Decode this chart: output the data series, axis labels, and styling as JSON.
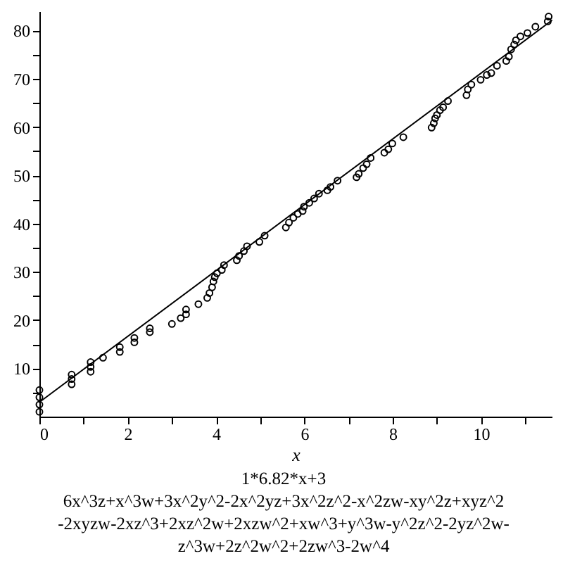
{
  "chart_data": {
    "type": "scatter",
    "xlabel": "x",
    "annotations": [
      "1*6.82*x+3",
      "6x^3z+x^3w+3x^2y^2-2x^2yz+3x^2z^2-x^2zw-xy^2z+xyz^2",
      "-2xyzw-2xz^3+2xz^2w+2xzw^2+xw^3+y^3w-y^2z^2-2yz^2w-",
      "z^3w+2z^2w^2+2zw^3-2w^4"
    ],
    "xlim": [
      0,
      11.6
    ],
    "ylim": [
      0,
      84
    ],
    "xticks": [
      0,
      {
        "value": 1,
        "label": null
      },
      2,
      {
        "value": 3,
        "label": null
      },
      4,
      {
        "value": 5,
        "label": null
      },
      6,
      {
        "value": 7,
        "label": null
      },
      8,
      {
        "value": 9,
        "label": null
      },
      10,
      {
        "value": 11,
        "label": null
      }
    ],
    "yticks": [
      {
        "value": 5,
        "label": null
      },
      10,
      {
        "value": 15,
        "label": null
      },
      20,
      {
        "value": 25,
        "label": null
      },
      30,
      {
        "value": 35,
        "label": null
      },
      40,
      {
        "value": 45,
        "label": null
      },
      50,
      {
        "value": 55,
        "label": null
      },
      60,
      {
        "value": 65,
        "label": null
      },
      70,
      {
        "value": 75,
        "label": null
      },
      80
    ],
    "grid": false,
    "series": [
      {
        "color": "#000000",
        "marker": "circle",
        "x": [
          0,
          0,
          0,
          0,
          0.73,
          0.73,
          0.73,
          1.16,
          1.16,
          1.16,
          1.44,
          1.82,
          1.82,
          2.15,
          2.15,
          2.5,
          2.5,
          3.0,
          3.2,
          3.32,
          3.32,
          3.6,
          3.8,
          3.85,
          3.91,
          3.94,
          3.97,
          4.02,
          4.13,
          4.18,
          4.47,
          4.52,
          4.63,
          4.7,
          4.98,
          5.1,
          5.58,
          5.65,
          5.75,
          5.85,
          5.96,
          5.99,
          6.11,
          6.22,
          6.33,
          6.52,
          6.59,
          6.75,
          7.18,
          7.23,
          7.33,
          7.41,
          7.5,
          7.81,
          7.9,
          7.99,
          8.24,
          8.88,
          8.93,
          8.96,
          9.0,
          9.07,
          9.14,
          9.25,
          9.67,
          9.7,
          9.78,
          9.99,
          10.13,
          10.23,
          10.36,
          10.57,
          10.63,
          10.68,
          10.75,
          10.79,
          10.89,
          11.05,
          11.23,
          11.51,
          11.53
        ],
        "values": [
          1,
          2.5,
          4,
          5.5,
          6.7,
          7.8,
          8.7,
          9.3,
          10.3,
          11.3,
          12.2,
          13.4,
          14.4,
          15.4,
          16.3,
          17.5,
          18.3,
          19.2,
          20.4,
          21.2,
          22.2,
          23.3,
          24.6,
          25.6,
          26.8,
          28.0,
          28.9,
          29.7,
          30.4,
          31.4,
          32.4,
          33.3,
          34.3,
          35.3,
          36.2,
          37.5,
          39.2,
          40.2,
          41.2,
          42.0,
          42.6,
          43.5,
          44.3,
          45.2,
          46.2,
          46.9,
          47.6,
          48.9,
          49.6,
          50.3,
          51.5,
          52.3,
          53.6,
          54.7,
          55.4,
          56.6,
          57.9,
          59.9,
          60.8,
          61.8,
          62.5,
          63.5,
          64.1,
          65.4,
          66.6,
          67.8,
          68.8,
          69.8,
          70.8,
          71.2,
          72.7,
          73.7,
          74.6,
          76.1,
          77.1,
          78.0,
          78.8,
          79.5,
          80.8,
          81.9,
          82.9
        ]
      },
      {
        "type": "line",
        "color": "#000000",
        "x": [
          0,
          11.6
        ],
        "values": [
          3,
          82.1
        ]
      }
    ]
  }
}
